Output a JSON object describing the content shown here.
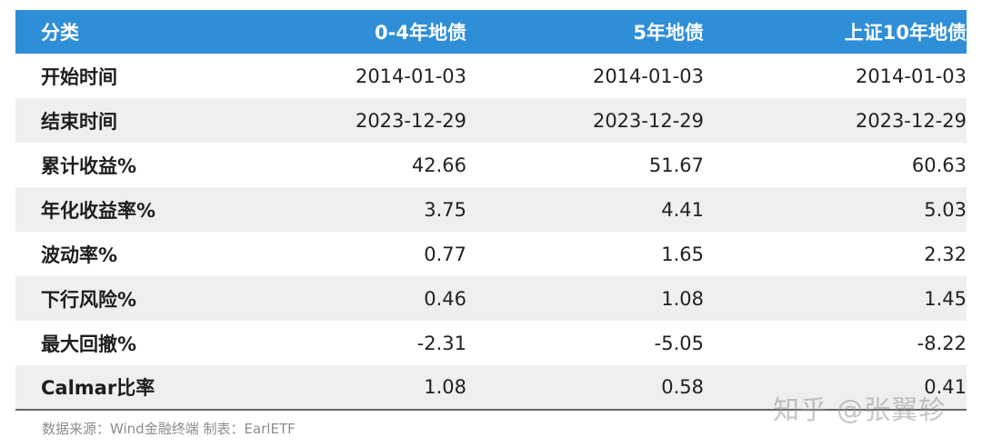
{
  "table": {
    "headers": [
      "分类",
      "0-4年地债",
      "5年地债",
      "上证10年地债"
    ],
    "rows": [
      {
        "label": "开始时间",
        "values": [
          "2014-01-03",
          "2014-01-03",
          "2014-01-03"
        ]
      },
      {
        "label": "结束时间",
        "values": [
          "2023-12-29",
          "2023-12-29",
          "2023-12-29"
        ]
      },
      {
        "label": "累计收益%",
        "values": [
          "42.66",
          "51.67",
          "60.63"
        ]
      },
      {
        "label": "年化收益率%",
        "values": [
          "3.75",
          "4.41",
          "5.03"
        ]
      },
      {
        "label": "波动率%",
        "values": [
          "0.77",
          "1.65",
          "2.32"
        ]
      },
      {
        "label": "下行风险%",
        "values": [
          "0.46",
          "1.08",
          "1.45"
        ]
      },
      {
        "label": "最大回撤%",
        "values": [
          "-2.31",
          "-5.05",
          "-8.22"
        ]
      },
      {
        "label": "Calmar比率",
        "values": [
          "1.08",
          "0.58",
          "0.41"
        ]
      }
    ]
  },
  "footer": {
    "source": "数据来源：Wind金融终端 制表：EarlETF"
  },
  "watermark": "知乎 @张翼轸",
  "colors": {
    "header_bg": "#2e8ed8",
    "stripe_bg": "#efefef"
  }
}
